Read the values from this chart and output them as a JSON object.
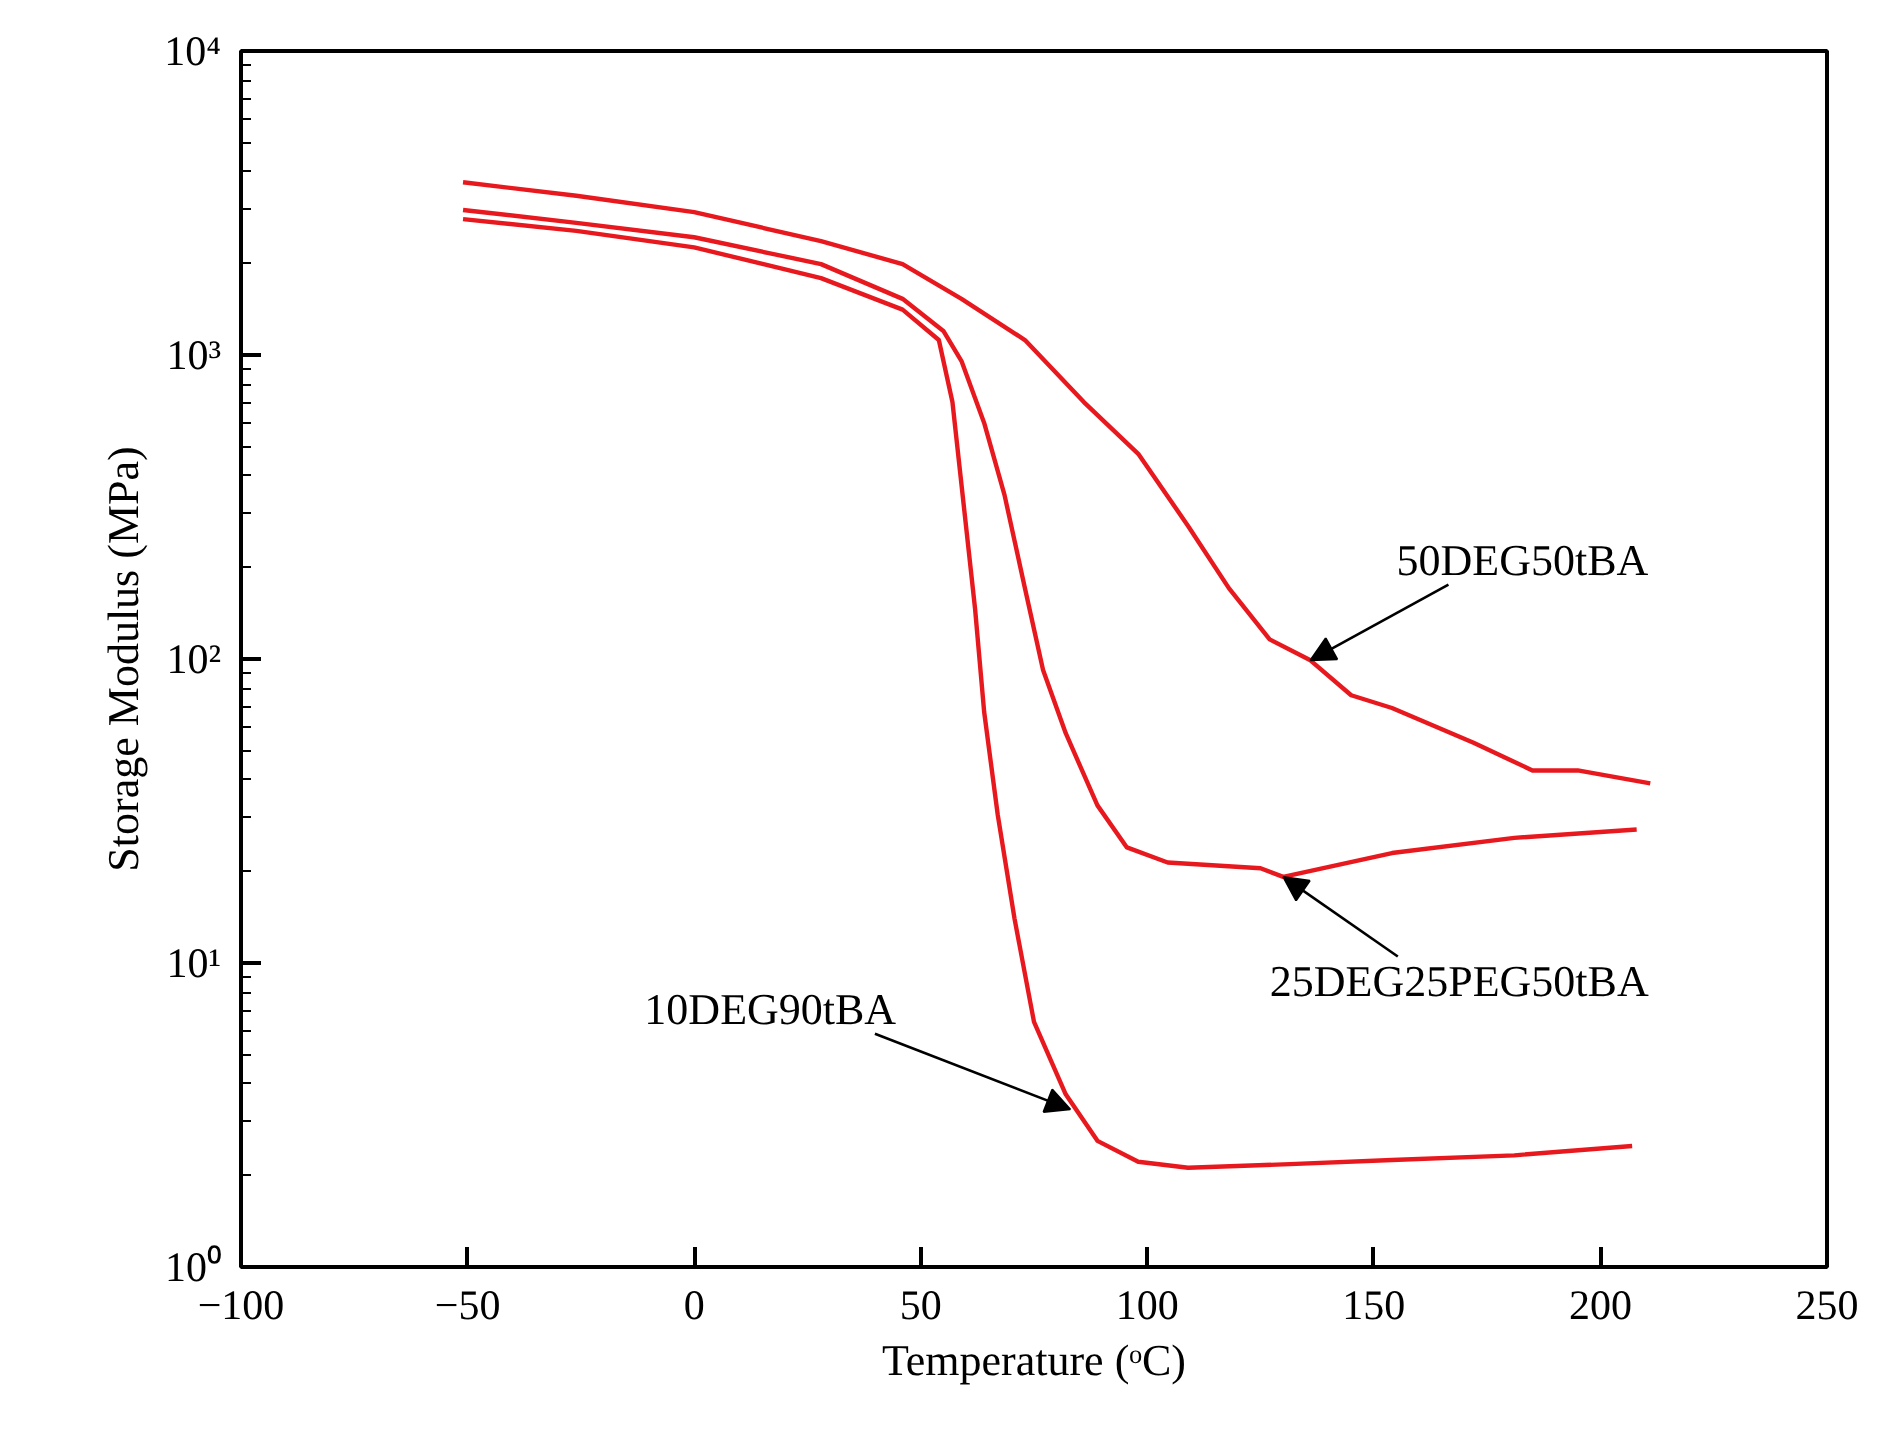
{
  "chart_data": {
    "type": "line",
    "xlabel": "Temperature (ᵒC)",
    "ylabel": "Storage Modulus (MPa)",
    "log": "y",
    "grid": false,
    "marker": "none",
    "line_style": "solid",
    "xlim": [
      -100,
      250
    ],
    "xticks": [
      -100,
      -50,
      0,
      50,
      100,
      150,
      200,
      250
    ],
    "ylim": [
      1,
      10000
    ],
    "yticks": [
      {
        "value": 1,
        "label": "10⁰"
      },
      {
        "value": 10,
        "label": "10¹"
      },
      {
        "value": 100,
        "label": "10²"
      },
      {
        "value": 1000,
        "label": "10³"
      },
      {
        "value": 10000,
        "label": "10⁴"
      }
    ],
    "series": [
      {
        "color": "#e8191e",
        "x": [
          -51,
          -26,
          0,
          28,
          46,
          59,
          73,
          86,
          98,
          109,
          118,
          127,
          136,
          145,
          154,
          172,
          185,
          195,
          211
        ],
        "values": [
          3700,
          3340,
          2950,
          2370,
          1990,
          1530,
          1120,
          700,
          473,
          274,
          171,
          116,
          99,
          76,
          69,
          53,
          43,
          43,
          39
        ]
      },
      {
        "color": "#e8191e",
        "x": [
          -51,
          -26,
          0,
          28,
          46,
          55,
          59,
          64,
          68.5,
          73,
          77,
          82,
          89,
          95.5,
          104.5,
          125,
          130,
          154,
          181,
          208
        ],
        "values": [
          3000,
          2720,
          2440,
          1990,
          1530,
          1200,
          955,
          598,
          346,
          171,
          92,
          57,
          33,
          24,
          21.4,
          20.5,
          19.2,
          23,
          25.8,
          27.5
        ]
      },
      {
        "color": "#e8191e",
        "x": [
          -51,
          -26,
          0,
          28,
          46,
          54,
          57,
          59.5,
          62,
          64,
          67,
          70.7,
          75,
          82,
          89,
          98,
          109,
          131.5,
          154,
          181,
          207
        ],
        "values": [
          2800,
          2560,
          2260,
          1790,
          1410,
          1120,
          700,
          320,
          146,
          67,
          30.7,
          14,
          6.4,
          3.7,
          2.6,
          2.22,
          2.12,
          2.18,
          2.25,
          2.33,
          2.5
        ]
      }
    ],
    "annotations": [
      {
        "text": "50DEG50tBA",
        "x": 136,
        "y": 99
      },
      {
        "text": "25DEG25PEG50tBA",
        "x": 130,
        "y": 19.2
      },
      {
        "text": "10DEG90tBA",
        "x": 83,
        "y": 3.3
      }
    ]
  }
}
